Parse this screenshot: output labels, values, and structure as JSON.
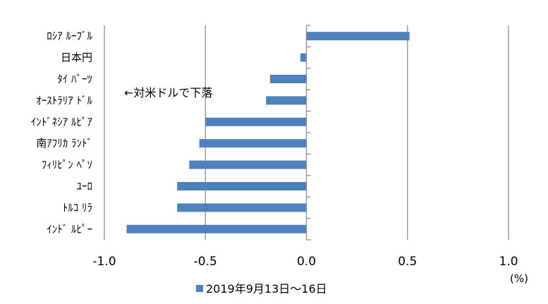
{
  "chart_data": {
    "type": "bar",
    "orientation": "horizontal",
    "categories": [
      "ﾛｼｱ ﾙｰﾌﾞﾙ",
      "日本円",
      "ﾀｲ ﾊﾞｰﾂ",
      "ｵｰｽﾄﾗﾘｱ ﾄﾞﾙ",
      "ｲﾝﾄﾞﾈｼｱ ﾙﾋﾟｱ",
      "南ｱﾌﾘｶ ﾗﾝﾄﾞ",
      "ﾌｨﾘﾋﾟﾝ ﾍﾟｿ",
      "ﾕｰﾛ",
      "ﾄﾙｺ ﾘﾗ",
      "ｲﾝﾄﾞ ﾙﾋﾟｰ"
    ],
    "series": [
      {
        "name": "2019年9月13日～16日",
        "color": "#4f81bd",
        "values": [
          0.51,
          -0.03,
          -0.18,
          -0.2,
          -0.5,
          -0.53,
          -0.58,
          -0.64,
          -0.64,
          -0.89
        ]
      }
    ],
    "xlim": [
      -1.0,
      1.0
    ],
    "x_ticks": [
      "-1.0",
      "-0.5",
      "0.0",
      "0.5",
      "1.0"
    ],
    "x_tick_values": [
      -1.0,
      -0.5,
      0.0,
      0.5,
      1.0
    ],
    "unit": "(%)",
    "annotation": "←対米ドルで下落",
    "grid": "vertical",
    "legend_position": "bottom"
  }
}
